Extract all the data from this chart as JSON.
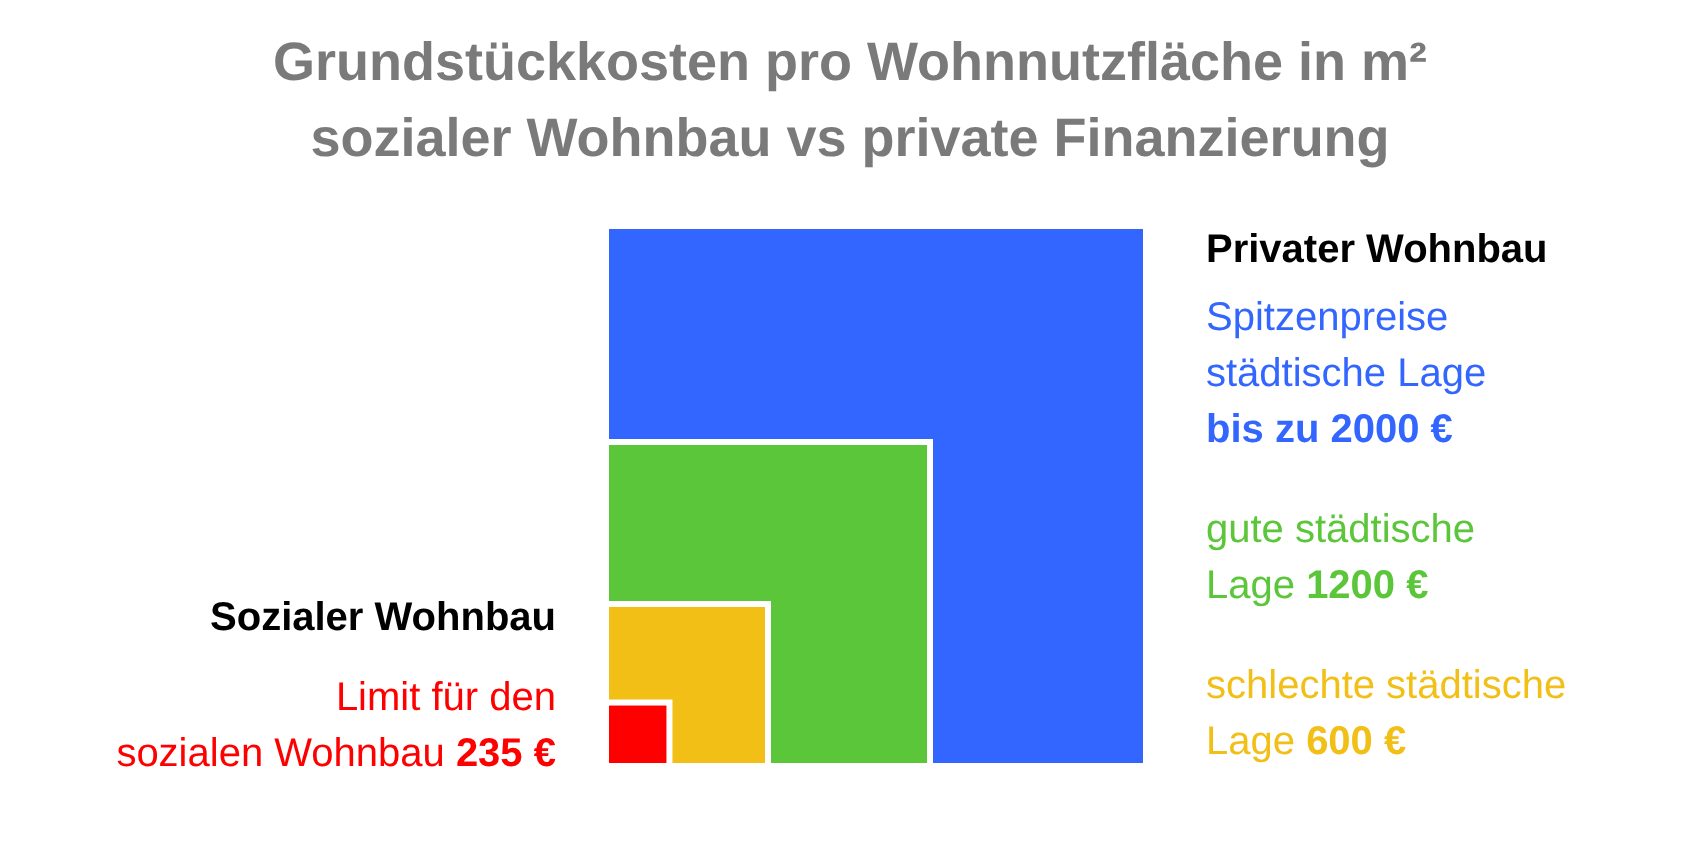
{
  "chart_data": {
    "type": "other",
    "title": "Grundstückkosten pro Wohnnutzfläche in m²",
    "subtitle": "sozialer Wohnbau vs private Finanzierung",
    "categories": [
      "Spitzenpreise\nstädtische Lage",
      "gute städtische\nLage",
      "schlechte städtische\nLage",
      "Limit für den\nsozialen Wohnbau"
    ],
    "values": [
      2000,
      1200,
      600,
      235
    ],
    "value_labels": [
      "bis zu 2000 €",
      "1200 €",
      "600 €",
      "235 €"
    ],
    "colors": [
      "#3366ff",
      "#5cc63a",
      "#f2bf17",
      "#ff0000"
    ],
    "annotations": [
      "Privater Wohnbau",
      "Sozialer Wohnbau"
    ]
  }
}
